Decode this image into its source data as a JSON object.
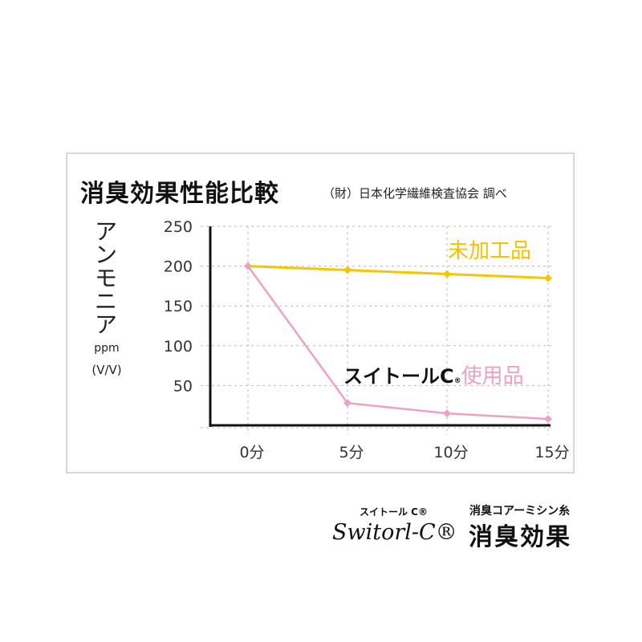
{
  "chart_data": {
    "type": "line",
    "title": "消臭効果性能比較",
    "source": "（財）日本化学繊維検査協会 調べ",
    "ylabel": "アンモニア",
    "yunit_line1": "ppm",
    "yunit_line2": "(V/V)",
    "ylim": [
      0,
      250
    ],
    "yticks": [
      "250",
      "200",
      "150",
      "100",
      "50"
    ],
    "ytick_values": [
      250,
      200,
      150,
      100,
      50
    ],
    "categories": [
      "0分",
      "5分",
      "10分",
      "15分"
    ],
    "grid": true,
    "series": [
      {
        "name": "未加工品",
        "color": "#f2c600",
        "values": [
          200,
          195,
          190,
          185
        ]
      },
      {
        "name_brand": "スイトールC",
        "name_mark": "®",
        "name": "使用品",
        "color": "#eaa2c6",
        "values": [
          200,
          28,
          15,
          8
        ]
      }
    ]
  },
  "footer": {
    "brand_kana": "スイトール C®",
    "brand_logo": "Switorl-C®",
    "product_sub": "消臭コアーミシン糸",
    "product_main": "消臭効果"
  }
}
